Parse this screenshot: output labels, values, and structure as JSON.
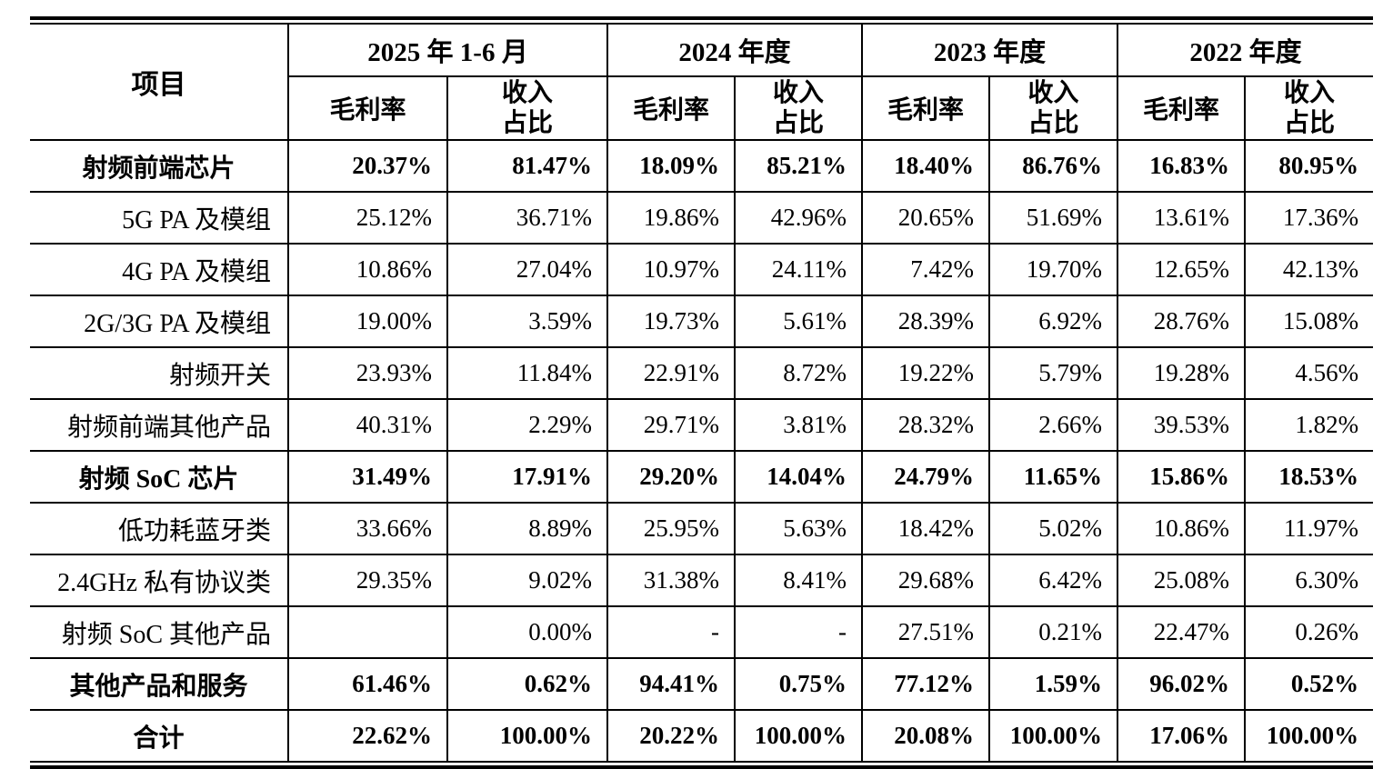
{
  "table": {
    "corner_header": "项目",
    "period_groups": [
      {
        "label": "2025 年 1-6 月"
      },
      {
        "label": "2024 年度"
      },
      {
        "label": "2023 年度"
      },
      {
        "label": "2022 年度"
      }
    ],
    "metric_headers": {
      "gross_margin": "毛利率",
      "revenue_share": "收入\n占比"
    },
    "rows": [
      {
        "label": "射频前端芯片",
        "bold": true,
        "label_align": "center",
        "values": [
          "20.37%",
          "81.47%",
          "18.09%",
          "85.21%",
          "18.40%",
          "86.76%",
          "16.83%",
          "80.95%"
        ]
      },
      {
        "label": "5G PA 及模组",
        "bold": false,
        "label_align": "right",
        "values": [
          "25.12%",
          "36.71%",
          "19.86%",
          "42.96%",
          "20.65%",
          "51.69%",
          "13.61%",
          "17.36%"
        ]
      },
      {
        "label": "4G PA 及模组",
        "bold": false,
        "label_align": "right",
        "values": [
          "10.86%",
          "27.04%",
          "10.97%",
          "24.11%",
          "7.42%",
          "19.70%",
          "12.65%",
          "42.13%"
        ]
      },
      {
        "label": "2G/3G PA 及模组",
        "bold": false,
        "label_align": "right",
        "values": [
          "19.00%",
          "3.59%",
          "19.73%",
          "5.61%",
          "28.39%",
          "6.92%",
          "28.76%",
          "15.08%"
        ]
      },
      {
        "label": "射频开关",
        "bold": false,
        "label_align": "right",
        "values": [
          "23.93%",
          "11.84%",
          "22.91%",
          "8.72%",
          "19.22%",
          "5.79%",
          "19.28%",
          "4.56%"
        ]
      },
      {
        "label": "射频前端其他产品",
        "bold": false,
        "label_align": "right",
        "values": [
          "40.31%",
          "2.29%",
          "29.71%",
          "3.81%",
          "28.32%",
          "2.66%",
          "39.53%",
          "1.82%"
        ]
      },
      {
        "label": "射频 SoC 芯片",
        "bold": true,
        "label_align": "center",
        "values": [
          "31.49%",
          "17.91%",
          "29.20%",
          "14.04%",
          "24.79%",
          "11.65%",
          "15.86%",
          "18.53%"
        ]
      },
      {
        "label": "低功耗蓝牙类",
        "bold": false,
        "label_align": "right",
        "values": [
          "33.66%",
          "8.89%",
          "25.95%",
          "5.63%",
          "18.42%",
          "5.02%",
          "10.86%",
          "11.97%"
        ]
      },
      {
        "label": "2.4GHz 私有协议类",
        "bold": false,
        "label_align": "right",
        "values": [
          "29.35%",
          "9.02%",
          "31.38%",
          "8.41%",
          "29.68%",
          "6.42%",
          "25.08%",
          "6.30%"
        ]
      },
      {
        "label": "射频 SoC 其他产品",
        "bold": false,
        "label_align": "right",
        "values": [
          "",
          "0.00%",
          "-",
          "-",
          "27.51%",
          "0.21%",
          "22.47%",
          "0.26%"
        ]
      },
      {
        "label": "其他产品和服务",
        "bold": true,
        "label_align": "center",
        "values": [
          "61.46%",
          "0.62%",
          "94.41%",
          "0.75%",
          "77.12%",
          "1.59%",
          "96.02%",
          "0.52%"
        ]
      },
      {
        "label": "合计",
        "bold": true,
        "label_align": "center",
        "values": [
          "22.62%",
          "100.00%",
          "20.22%",
          "100.00%",
          "20.08%",
          "100.00%",
          "17.06%",
          "100.00%"
        ]
      }
    ]
  }
}
